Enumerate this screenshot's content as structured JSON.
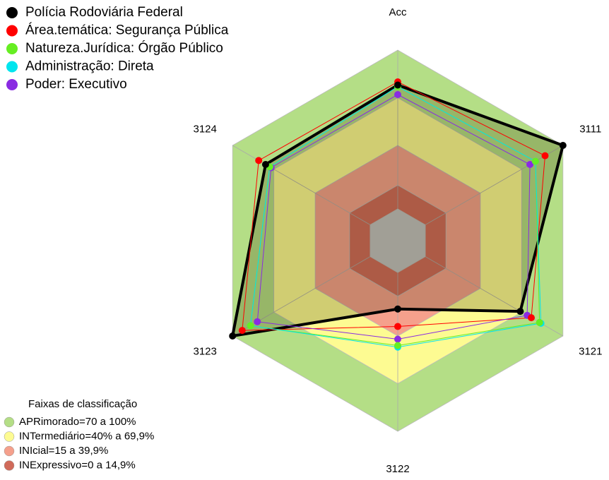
{
  "chart_data": {
    "type": "radar",
    "categories": [
      "Acc",
      "3111",
      "3121",
      "3122",
      "3123",
      "3124"
    ],
    "rlim": [
      0,
      100
    ],
    "series": [
      {
        "name": "Polícia Rodoviária Federal",
        "color": "#000000",
        "filled": true,
        "values": [
          78,
          100,
          69,
          23,
          100,
          76
        ]
      },
      {
        "name": "Área.temática: Segurança Pública",
        "color": "#ff0000",
        "values": [
          80,
          87,
          77,
          34,
          93,
          81
        ]
      },
      {
        "name": "Natureza.Jurídica: Órgão Público",
        "color": "#66ee22",
        "values": [
          77,
          80,
          83,
          46,
          87,
          73
        ]
      },
      {
        "name": "Administração: Direta",
        "color": "#00e5ee",
        "values": [
          77,
          80,
          84,
          47,
          87,
          73
        ]
      },
      {
        "name": "Poder: Executivo",
        "color": "#8a2be2",
        "values": [
          72,
          76,
          74,
          42,
          82,
          72
        ]
      }
    ],
    "bands_title": "Faixas de classificação",
    "bands": [
      {
        "label": "APRimorado=70 a 100%",
        "from": 70,
        "color": "#b4de86"
      },
      {
        "label": "INTermediário=40% a 69,9%",
        "from": 40,
        "color": "#fdfb92"
      },
      {
        "label": "INIcial=15 a 39,9%",
        "from": 15,
        "color": "#f5a08c"
      },
      {
        "label": "INExpressivo=0 a 14,9%",
        "from": 0,
        "color": "#d06a5a"
      }
    ]
  }
}
